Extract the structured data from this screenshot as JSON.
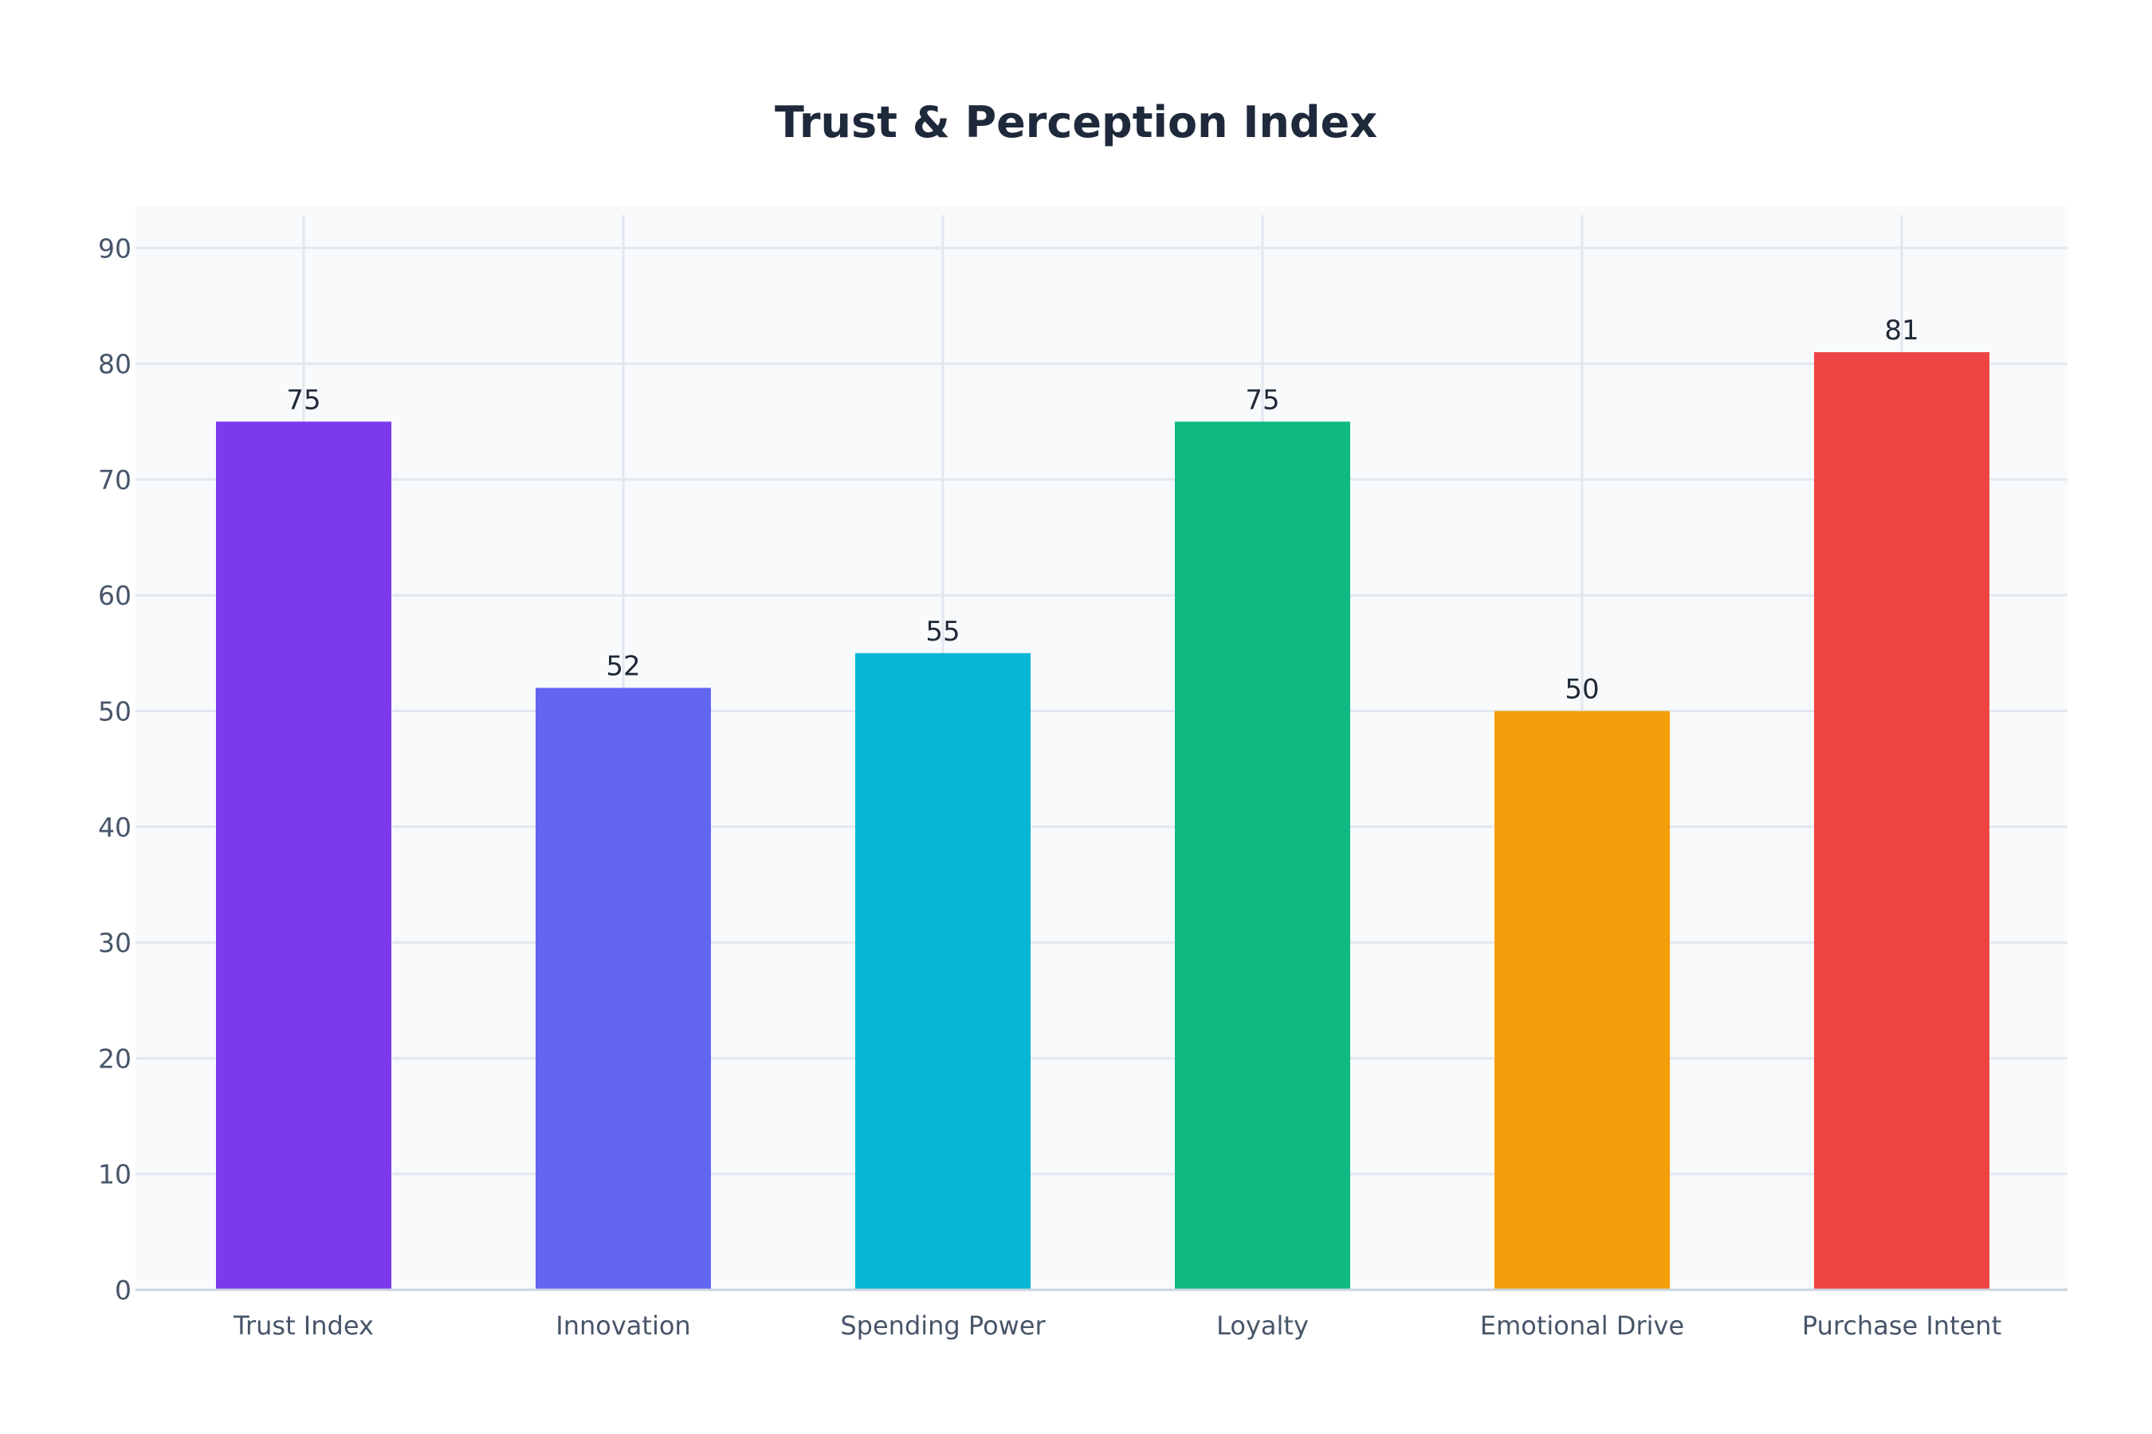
{
  "chart_data": {
    "type": "bar",
    "title": "Trust & Perception Index",
    "xlabel": "",
    "ylabel": "",
    "categories": [
      "Trust Index",
      "Innovation",
      "Spending Power",
      "Loyalty",
      "Emotional Drive",
      "Purchase Intent"
    ],
    "values": [
      75,
      52,
      55,
      75,
      50,
      81
    ],
    "colors": [
      "#7c3aed",
      "#6366f1",
      "#06b6d4",
      "#10b981",
      "#f59e0b",
      "#ef4444"
    ],
    "ylim": [
      0,
      93
    ],
    "yticks": [
      0,
      10,
      20,
      30,
      40,
      50,
      60,
      70,
      80,
      90
    ],
    "grid": true,
    "data_labels": true
  }
}
